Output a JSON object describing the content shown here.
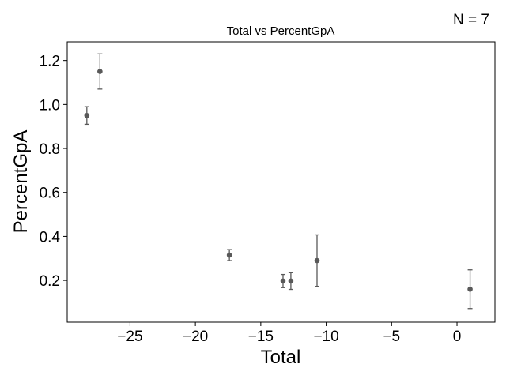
{
  "chart_data": {
    "type": "scatter",
    "title": "Total vs PercentGpA",
    "xlabel": "Total",
    "ylabel": "PercentGpA",
    "annotation": "N = 7",
    "xlim": [
      -29.8,
      2.9
    ],
    "ylim": [
      0.01,
      1.285
    ],
    "xticks": [
      -25,
      -20,
      -15,
      -10,
      -5,
      0
    ],
    "xtick_labels": [
      "−25",
      "−20",
      "−15",
      "−10",
      "−5",
      "0"
    ],
    "yticks": [
      0.2,
      0.4,
      0.6,
      0.8,
      1.0,
      1.2
    ],
    "ytick_labels": [
      "0.2",
      "0.4",
      "0.6",
      "0.8",
      "1.0",
      "1.2"
    ],
    "grid": false,
    "marker_color": "#595959",
    "points": [
      {
        "x": -28.3,
        "y": 0.95,
        "err": 0.04
      },
      {
        "x": -27.3,
        "y": 1.15,
        "err": 0.08
      },
      {
        "x": -17.4,
        "y": 0.315,
        "err": 0.025
      },
      {
        "x": -13.3,
        "y": 0.197,
        "err": 0.03
      },
      {
        "x": -12.7,
        "y": 0.197,
        "err": 0.038
      },
      {
        "x": -10.7,
        "y": 0.29,
        "err": 0.117
      },
      {
        "x": 1.0,
        "y": 0.16,
        "err": 0.088
      }
    ]
  }
}
